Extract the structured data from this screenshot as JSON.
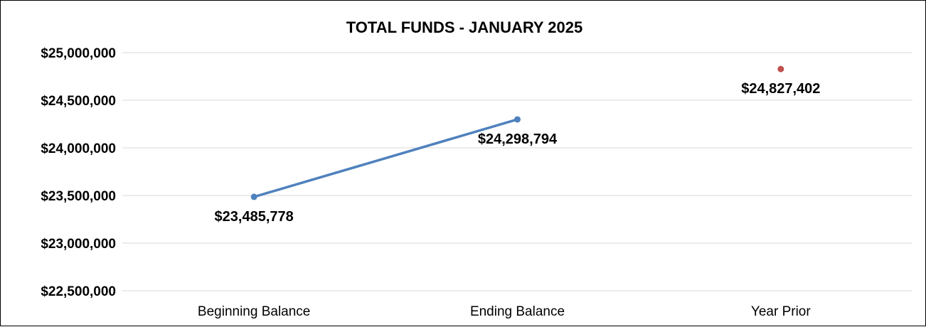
{
  "chart_data": {
    "type": "line",
    "title": "TOTAL FUNDS - JANUARY 2025",
    "categories": [
      "Beginning Balance",
      "Ending Balance",
      "Year Prior"
    ],
    "series": [
      {
        "values": [
          23485778,
          24298794,
          null
        ],
        "labels": [
          "$23,485,778",
          "$24,298,794",
          ""
        ],
        "color": "#4f81bd"
      },
      {
        "values": [
          null,
          null,
          24827402
        ],
        "labels": [
          "",
          "",
          "$24,827,402"
        ],
        "color": "#c0504d"
      }
    ],
    "ylim": [
      22500000,
      25000000
    ],
    "yticks": [
      25000000,
      24500000,
      24000000,
      23500000,
      23000000,
      22500000
    ],
    "ytick_labels": [
      "$25,000,000",
      "$24,500,000",
      "$24,000,000",
      "$23,500,000",
      "$23,000,000",
      "$22,500,000"
    ],
    "grid": true,
    "legend": "none"
  }
}
